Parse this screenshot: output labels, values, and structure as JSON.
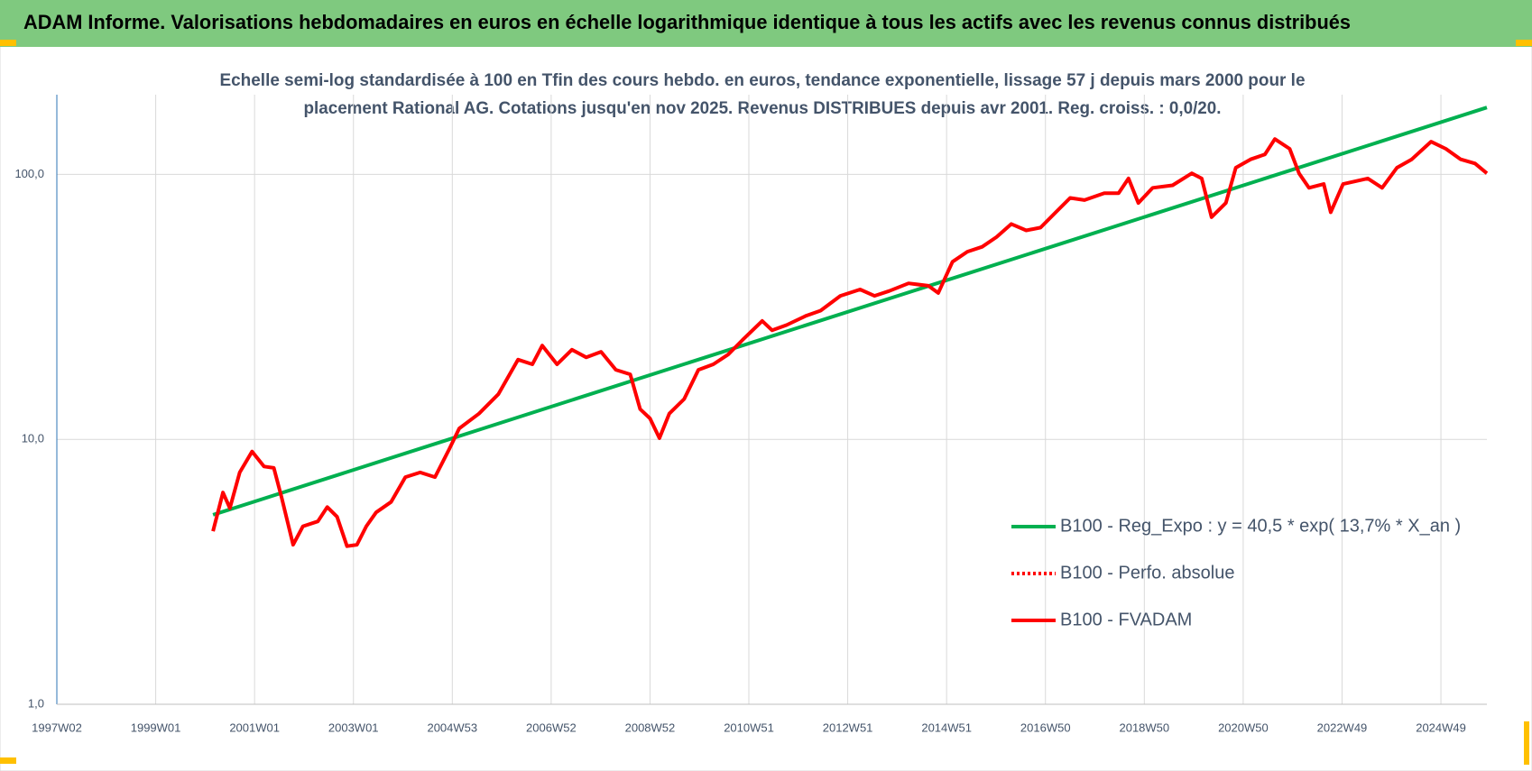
{
  "header": {
    "title": "ADAM Informe. Valorisations hebdomadaires en euros en échelle logarithmique identique à tous les actifs avec les revenus connus distribués"
  },
  "chart_data": {
    "type": "line",
    "subtitle": [
      "Echelle semi-log standardisée à 100 en Tfin des cours hebdo. en euros, tendance exponentielle, lissage 57 j depuis mars 2000 pour le",
      "placement Rational AG. Cotations jusqu'en nov 2025. Revenus DISTRIBUES depuis avr 2001. Reg. croiss. : 0,0/20."
    ],
    "xlim": [
      1997,
      2025.93
    ],
    "xticks": [
      {
        "value": 1997,
        "label": "1997W02"
      },
      {
        "value": 1999,
        "label": "1999W01"
      },
      {
        "value": 2001,
        "label": "2001W01"
      },
      {
        "value": 2003,
        "label": "2003W01"
      },
      {
        "value": 2005,
        "label": "2004W53"
      },
      {
        "value": 2007,
        "label": "2006W52"
      },
      {
        "value": 2009,
        "label": "2008W52"
      },
      {
        "value": 2011,
        "label": "2010W51"
      },
      {
        "value": 2013,
        "label": "2012W51"
      },
      {
        "value": 2015,
        "label": "2014W51"
      },
      {
        "value": 2017,
        "label": "2016W50"
      },
      {
        "value": 2019,
        "label": "2018W50"
      },
      {
        "value": 2021,
        "label": "2020W50"
      },
      {
        "value": 2023,
        "label": "2022W49"
      },
      {
        "value": 2025,
        "label": "2024W49"
      }
    ],
    "ylim": [
      1,
      200
    ],
    "log_y": true,
    "yticks": [
      {
        "value": 1,
        "label": "1,0"
      },
      {
        "value": 10,
        "label": "10,0"
      },
      {
        "value": 100,
        "label": "100,0"
      }
    ],
    "grid": true,
    "legend_position": "lower right",
    "series": [
      {
        "name": "B100 - Reg_Expo : y = 40,5 * exp( 13,7% *  X_an )",
        "color": "#00b050",
        "line_style": "solid",
        "x": [
          2000.16,
          2025.93
        ],
        "values": [
          5.19,
          179
        ]
      },
      {
        "name": "B100 - Perfo. absolue",
        "color": "#ff0000",
        "line_style": "dotted",
        "x": [],
        "values": []
      },
      {
        "name": "B100 - FVADAM",
        "color": "#ff0000",
        "line_style": "solid",
        "x": [
          2000.16,
          2000.36,
          2000.5,
          2000.7,
          2000.95,
          2001.19,
          2001.39,
          2001.55,
          2001.78,
          2001.98,
          2002.28,
          2002.47,
          2002.67,
          2002.87,
          2003.07,
          2003.26,
          2003.46,
          2003.76,
          2004.05,
          2004.35,
          2004.65,
          2004.94,
          2005.14,
          2005.54,
          2005.93,
          2006.33,
          2006.62,
          2006.82,
          2007.12,
          2007.42,
          2007.71,
          2008.01,
          2008.31,
          2008.6,
          2008.8,
          2009.0,
          2009.19,
          2009.39,
          2009.69,
          2009.98,
          2010.28,
          2010.58,
          2010.87,
          2011.27,
          2011.47,
          2011.76,
          2012.16,
          2012.45,
          2012.85,
          2013.25,
          2013.54,
          2013.84,
          2014.23,
          2014.63,
          2014.83,
          2015.12,
          2015.42,
          2015.72,
          2016.01,
          2016.31,
          2016.61,
          2016.9,
          2017.2,
          2017.5,
          2017.79,
          2018.19,
          2018.48,
          2018.68,
          2018.88,
          2019.17,
          2019.57,
          2019.96,
          2020.16,
          2020.36,
          2020.65,
          2020.85,
          2021.15,
          2021.44,
          2021.64,
          2021.94,
          2022.13,
          2022.33,
          2022.63,
          2022.77,
          2023.02,
          2023.52,
          2023.81,
          2024.11,
          2024.41,
          2024.8,
          2025.1,
          2025.4,
          2025.69,
          2025.93
        ],
        "values": [
          4.5,
          6.3,
          5.5,
          7.5,
          9.0,
          7.9,
          7.8,
          6.0,
          4.0,
          4.7,
          4.9,
          5.55,
          5.1,
          3.95,
          4.0,
          4.7,
          5.3,
          5.8,
          7.2,
          7.5,
          7.2,
          9.2,
          11.0,
          12.5,
          14.8,
          20,
          19.2,
          22.6,
          19.2,
          21.8,
          20.4,
          21.4,
          18.3,
          17.6,
          13.0,
          12.0,
          10.1,
          12.5,
          14.2,
          18.3,
          19.2,
          20.9,
          23.7,
          28.0,
          25.8,
          27.0,
          29.3,
          30.6,
          34.8,
          36.8,
          34.8,
          36.3,
          38.8,
          38.0,
          35.7,
          46.8,
          51.1,
          53.3,
          58.0,
          65,
          61.5,
          63,
          71.7,
          81.5,
          80,
          85,
          85,
          96.6,
          78,
          89,
          91,
          101,
          96.6,
          69,
          78,
          106,
          114,
          119,
          136,
          125,
          101,
          89,
          92,
          72,
          92,
          96.6,
          89,
          106,
          114,
          133,
          125,
          114,
          110,
          101
        ]
      }
    ]
  }
}
